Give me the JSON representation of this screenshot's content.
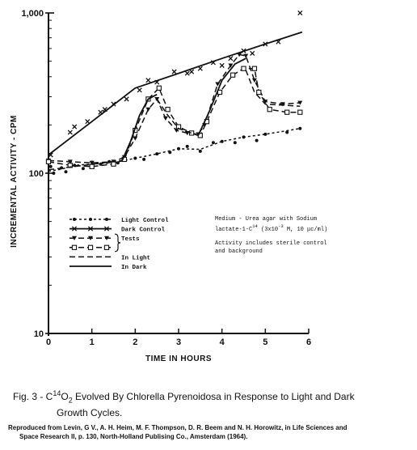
{
  "chart_data": {
    "type": "line",
    "y_scale": "log",
    "xlabel": "TIME IN HOURS",
    "ylabel": "INCREMENTAL ACTIVITY - CPM",
    "xlim": [
      0,
      6
    ],
    "ylim": [
      10,
      1000
    ],
    "x_ticks": [
      "0",
      "1",
      "2",
      "3",
      "4",
      "5",
      "6"
    ],
    "y_ticks": [
      {
        "value": 1000,
        "label": "1,000"
      },
      {
        "value": 100,
        "label": "100"
      },
      {
        "value": 10,
        "label": "10"
      }
    ],
    "series": [
      {
        "name": "Light Control",
        "style": "dotted-line",
        "marker": "dot",
        "points": [
          [
            0,
            103
          ],
          [
            0.3,
            106
          ],
          [
            0.6,
            112
          ],
          [
            1.0,
            114
          ],
          [
            1.5,
            116
          ],
          [
            2.0,
            124
          ],
          [
            2.5,
            132
          ],
          [
            3.0,
            142
          ],
          [
            3.5,
            141
          ],
          [
            4.0,
            158
          ],
          [
            4.5,
            168
          ],
          [
            5.0,
            175
          ],
          [
            5.8,
            190
          ]
        ],
        "markers": [
          [
            0.05,
            110
          ],
          [
            0.12,
            100
          ],
          [
            0.3,
            108
          ],
          [
            0.4,
            102
          ],
          [
            0.6,
            112
          ],
          [
            0.8,
            107
          ],
          [
            1.0,
            117
          ],
          [
            1.2,
            114
          ],
          [
            1.4,
            118
          ],
          [
            1.6,
            116
          ],
          [
            2.0,
            124
          ],
          [
            2.2,
            122
          ],
          [
            2.5,
            132
          ],
          [
            2.8,
            135
          ],
          [
            3.0,
            142
          ],
          [
            3.2,
            147
          ],
          [
            3.5,
            137
          ],
          [
            3.8,
            155
          ],
          [
            4.0,
            158
          ],
          [
            4.3,
            155
          ],
          [
            4.5,
            168
          ],
          [
            4.8,
            160
          ],
          [
            5.0,
            175
          ],
          [
            5.5,
            180
          ],
          [
            5.8,
            190
          ]
        ]
      },
      {
        "name": "Dark Control",
        "style": "solid-line",
        "marker": "x",
        "points": [
          [
            0,
            130
          ],
          [
            1.0,
            210
          ],
          [
            2.0,
            340
          ],
          [
            3.0,
            420
          ],
          [
            4.0,
            520
          ],
          [
            5.0,
            640
          ],
          [
            5.85,
            760
          ]
        ],
        "markers": [
          [
            0.05,
            130
          ],
          [
            0.5,
            180
          ],
          [
            0.6,
            195
          ],
          [
            0.9,
            210
          ],
          [
            1.2,
            240
          ],
          [
            1.3,
            250
          ],
          [
            1.5,
            270
          ],
          [
            1.8,
            290
          ],
          [
            2.1,
            330
          ],
          [
            2.3,
            380
          ],
          [
            2.5,
            370
          ],
          [
            2.9,
            430
          ],
          [
            3.2,
            420
          ],
          [
            3.3,
            430
          ],
          [
            3.5,
            450
          ],
          [
            3.8,
            490
          ],
          [
            4.0,
            470
          ],
          [
            4.2,
            520
          ],
          [
            4.5,
            580
          ],
          [
            4.7,
            560
          ],
          [
            5.0,
            640
          ],
          [
            5.3,
            660
          ],
          [
            5.8,
            1000
          ]
        ]
      },
      {
        "name": "Tests (triangle)",
        "style": "dashed-line",
        "marker": "triangle",
        "points": [
          [
            0,
            120
          ],
          [
            0.5,
            118
          ],
          [
            1.0,
            116
          ],
          [
            1.5,
            118
          ],
          [
            1.75,
            126
          ],
          [
            2.0,
            165
          ],
          [
            2.3,
            250
          ],
          [
            2.5,
            290
          ],
          [
            2.7,
            220
          ],
          [
            2.95,
            185
          ],
          [
            3.2,
            178
          ],
          [
            3.45,
            175
          ],
          [
            3.6,
            200
          ],
          [
            3.9,
            360
          ],
          [
            4.2,
            470
          ],
          [
            4.4,
            550
          ],
          [
            4.55,
            540
          ],
          [
            4.75,
            380
          ],
          [
            5.0,
            280
          ],
          [
            5.4,
            270
          ],
          [
            5.8,
            275
          ]
        ]
      },
      {
        "name": "Tests (square)",
        "style": "dashed-line",
        "marker": "square",
        "points": [
          [
            0,
            118
          ],
          [
            0.5,
            112
          ],
          [
            1.0,
            110
          ],
          [
            1.5,
            114
          ],
          [
            1.75,
            122
          ],
          [
            2.0,
            185
          ],
          [
            2.3,
            290
          ],
          [
            2.55,
            340
          ],
          [
            2.75,
            250
          ],
          [
            3.0,
            195
          ],
          [
            3.3,
            178
          ],
          [
            3.5,
            172
          ],
          [
            3.65,
            210
          ],
          [
            3.95,
            320
          ],
          [
            4.25,
            410
          ],
          [
            4.5,
            450
          ],
          [
            4.75,
            450
          ],
          [
            4.85,
            320
          ],
          [
            5.1,
            250
          ],
          [
            5.5,
            240
          ],
          [
            5.8,
            240
          ]
        ]
      },
      {
        "name": "In Light",
        "style": "dashed-line",
        "marker": "none",
        "segments": [
          [
            [
              0,
              105
            ],
            [
              1.7,
              120
            ]
          ],
          [
            [
              2.5,
              290
            ],
            [
              2.75,
              230
            ],
            [
              3.0,
              190
            ],
            [
              3.45,
              172
            ]
          ],
          [
            [
              4.55,
              440
            ],
            [
              4.75,
              320
            ],
            [
              5.0,
              270
            ],
            [
              5.8,
              262
            ]
          ]
        ]
      },
      {
        "name": "In Dark",
        "style": "solid-line",
        "marker": "none",
        "segments": [
          [
            [
              1.7,
              120
            ],
            [
              1.9,
              160
            ],
            [
              2.1,
              230
            ],
            [
              2.3,
              290
            ],
            [
              2.5,
              310
            ]
          ],
          [
            [
              3.45,
              172
            ],
            [
              3.7,
              240
            ],
            [
              4.0,
              380
            ],
            [
              4.3,
              480
            ],
            [
              4.55,
              520
            ]
          ]
        ]
      }
    ],
    "legend": {
      "placement": "lower-left",
      "entries": [
        {
          "style": "dotted-line",
          "marker": "dot",
          "label": "Light Control"
        },
        {
          "style": "solid-line",
          "marker": "x",
          "label": "Dark Control"
        },
        {
          "style": "dashed-line",
          "marker": "triangle",
          "label": "Tests"
        },
        {
          "style": "dashed-line",
          "marker": "square",
          "label": ""
        },
        {
          "style": "dashed-line",
          "marker": "none",
          "label": "In Light"
        },
        {
          "style": "solid-line",
          "marker": "none",
          "label": "In Dark"
        }
      ]
    },
    "annotation": {
      "placement": "lower-right",
      "line1": "Medium - Urea agar with Sodium",
      "line2_prefix": "lactate-1-C",
      "line2_sup": "14",
      "line2_mid": " (3x10",
      "line2_sup2": "-3",
      "line2_suffix": " M, 10 μc/ml)",
      "line3": "Activity includes sterile control",
      "line4": "and background"
    }
  },
  "caption": {
    "prefix": "Fig. 3 - C",
    "sup": "14",
    "mid": "O",
    "sub": "2",
    "suffix": " Evolved By Chlorella Pyrenoidosa in Response to Light and Dark",
    "line2": "Growth Cycles."
  },
  "reference": {
    "line1": "Reproduced from Levin, G V., A. H. Heim, M. F. Thompson, D. R. Beem and N. H. Horowitz, in Life Sciences and",
    "line2": "Space Research II, p. 130, North-Holland Publising Co., Amsterdam (1964)."
  }
}
